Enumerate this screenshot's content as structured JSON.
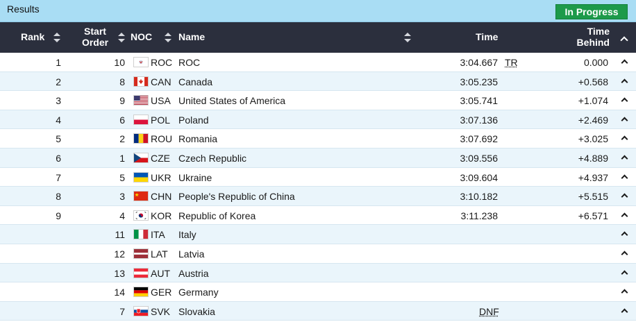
{
  "topbar": {
    "title": "Results",
    "status": "In Progress",
    "status_color": "#1d9a4a"
  },
  "header": {
    "rank": "Rank",
    "start_order_line1": "Start",
    "start_order_line2": "Order",
    "noc": "NOC",
    "name": "Name",
    "time": "Time",
    "behind_line1": "Time",
    "behind_line2": "Behind"
  },
  "rows": [
    {
      "rank": "1",
      "start": "10",
      "noc": "ROC",
      "name": "ROC",
      "time": "3:04.667",
      "note": "TR",
      "behind": "0.000",
      "flag": "roc-flag-icon"
    },
    {
      "rank": "2",
      "start": "8",
      "noc": "CAN",
      "name": "Canada",
      "time": "3:05.235",
      "note": "",
      "behind": "+0.568",
      "flag": "canada-flag-icon"
    },
    {
      "rank": "3",
      "start": "9",
      "noc": "USA",
      "name": "United States of America",
      "time": "3:05.741",
      "note": "",
      "behind": "+1.074",
      "flag": "usa-flag-icon"
    },
    {
      "rank": "4",
      "start": "6",
      "noc": "POL",
      "name": "Poland",
      "time": "3:07.136",
      "note": "",
      "behind": "+2.469",
      "flag": "poland-flag-icon"
    },
    {
      "rank": "5",
      "start": "2",
      "noc": "ROU",
      "name": "Romania",
      "time": "3:07.692",
      "note": "",
      "behind": "+3.025",
      "flag": "romania-flag-icon"
    },
    {
      "rank": "6",
      "start": "1",
      "noc": "CZE",
      "name": "Czech Republic",
      "time": "3:09.556",
      "note": "",
      "behind": "+4.889",
      "flag": "czech-flag-icon"
    },
    {
      "rank": "7",
      "start": "5",
      "noc": "UKR",
      "name": "Ukraine",
      "time": "3:09.604",
      "note": "",
      "behind": "+4.937",
      "flag": "ukraine-flag-icon"
    },
    {
      "rank": "8",
      "start": "3",
      "noc": "CHN",
      "name": "People's Republic of China",
      "time": "3:10.182",
      "note": "",
      "behind": "+5.515",
      "flag": "china-flag-icon"
    },
    {
      "rank": "9",
      "start": "4",
      "noc": "KOR",
      "name": "Republic of Korea",
      "time": "3:11.238",
      "note": "",
      "behind": "+6.571",
      "flag": "korea-flag-icon"
    },
    {
      "rank": "",
      "start": "11",
      "noc": "ITA",
      "name": "Italy",
      "time": "",
      "note": "",
      "behind": "",
      "flag": "italy-flag-icon"
    },
    {
      "rank": "",
      "start": "12",
      "noc": "LAT",
      "name": "Latvia",
      "time": "",
      "note": "",
      "behind": "",
      "flag": "latvia-flag-icon"
    },
    {
      "rank": "",
      "start": "13",
      "noc": "AUT",
      "name": "Austria",
      "time": "",
      "note": "",
      "behind": "",
      "flag": "austria-flag-icon"
    },
    {
      "rank": "",
      "start": "14",
      "noc": "GER",
      "name": "Germany",
      "time": "",
      "note": "",
      "behind": "",
      "flag": "germany-flag-icon"
    },
    {
      "rank": "",
      "start": "7",
      "noc": "SVK",
      "name": "Slovakia",
      "time": "",
      "note": "",
      "dnf": "DNF",
      "behind": "",
      "flag": "slovakia-flag-icon"
    }
  ]
}
